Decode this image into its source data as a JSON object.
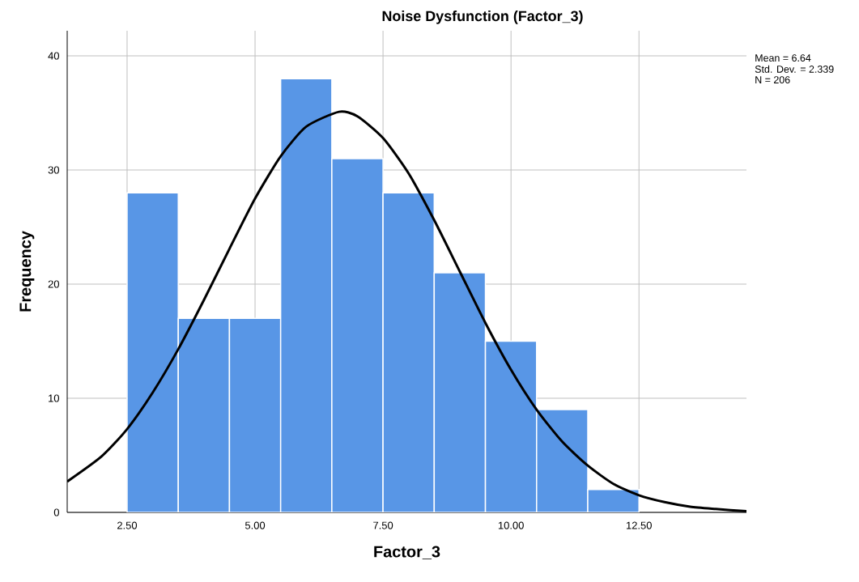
{
  "chart_data": {
    "type": "histogram",
    "title": "Noise Dysfunction (Factor_3)",
    "xlabel": "Factor_3",
    "ylabel": "Frequency",
    "annotations": [
      "Mean = 6.64",
      "Std. Dev. = 2.339",
      "N = 206"
    ],
    "bins": [
      2.5,
      3.5,
      4.5,
      5.5,
      6.5,
      7.5,
      8.5,
      9.5,
      10.5,
      11.5,
      12.5
    ],
    "values": [
      28,
      17,
      17,
      38,
      31,
      28,
      21,
      15,
      9,
      2
    ],
    "color": "#5896e6",
    "series": [
      {
        "type": "line",
        "color": "#000000",
        "x": [
          1.33,
          2,
          2.5,
          3,
          3.5,
          4,
          4.5,
          5,
          5.5,
          6,
          6.64,
          7,
          7.5,
          8,
          8.5,
          9,
          9.5,
          10,
          10.5,
          11,
          11.5,
          12,
          12.5,
          13,
          13.5,
          14,
          14.6
        ],
        "values": [
          2.7,
          4.9,
          7.3,
          10.5,
          14.3,
          18.6,
          23.1,
          27.5,
          31.2,
          33.8,
          35.1,
          34.7,
          32.8,
          29.7,
          25.6,
          21.1,
          16.6,
          12.5,
          9.0,
          6.2,
          4.1,
          2.5,
          1.5,
          0.9,
          0.5,
          0.3,
          0.1
        ]
      }
    ],
    "xlim": [
      1.33,
      14.6
    ],
    "ylim": [
      0,
      42.2
    ],
    "xticks": [
      {
        "value": 2.5,
        "label": "2.50"
      },
      {
        "value": 5,
        "label": "5.00"
      },
      {
        "value": 7.5,
        "label": "7.50"
      },
      {
        "value": 10,
        "label": "10.00"
      },
      {
        "value": 12.5,
        "label": "12.50"
      }
    ],
    "yticks": [
      0,
      10,
      20,
      30,
      40
    ],
    "grid": true
  }
}
